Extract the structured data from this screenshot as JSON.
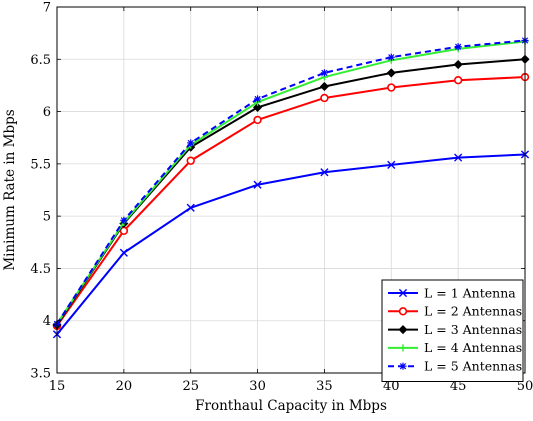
{
  "chart_data": {
    "type": "line",
    "title": "",
    "xlabel": "Fronthaul Capacity in Mbps",
    "ylabel": "Minimum Rate in Mbps",
    "x": [
      15,
      20,
      25,
      30,
      35,
      40,
      45,
      50
    ],
    "xlim": [
      15,
      50
    ],
    "ylim": [
      3.5,
      7
    ],
    "xticks": [
      "15",
      "20",
      "25",
      "30",
      "35",
      "40",
      "45",
      "50"
    ],
    "yticks": [
      "3.5",
      "4",
      "4.5",
      "5",
      "5.5",
      "6",
      "6.5",
      "7"
    ],
    "grid": true,
    "legend_position": "bottom-right",
    "series": [
      {
        "name": "L = 1 Antenna",
        "color": "#0000ff",
        "marker": "x-icon",
        "dash": "solid",
        "values": [
          3.87,
          4.65,
          5.08,
          5.3,
          5.42,
          5.49,
          5.56,
          5.59
        ]
      },
      {
        "name": "L = 2 Antennas",
        "color": "#ff0000",
        "marker": "circle-icon",
        "dash": "solid",
        "values": [
          3.95,
          4.86,
          5.53,
          5.92,
          6.13,
          6.23,
          6.3,
          6.33
        ]
      },
      {
        "name": "L = 3 Antennas",
        "color": "#000000",
        "marker": "diamond-icon",
        "dash": "solid",
        "values": [
          3.96,
          4.93,
          5.66,
          6.04,
          6.24,
          6.37,
          6.45,
          6.5
        ]
      },
      {
        "name": "L = 4 Antennas",
        "color": "#33ee33",
        "marker": "plus-icon",
        "dash": "solid",
        "values": [
          3.97,
          4.94,
          5.68,
          6.09,
          6.33,
          6.49,
          6.6,
          6.67
        ]
      },
      {
        "name": "L = 5 Antennas",
        "color": "#0000ff",
        "marker": "star-icon",
        "dash": "dashed",
        "values": [
          3.97,
          4.96,
          5.7,
          6.12,
          6.37,
          6.52,
          6.62,
          6.68
        ]
      }
    ]
  }
}
